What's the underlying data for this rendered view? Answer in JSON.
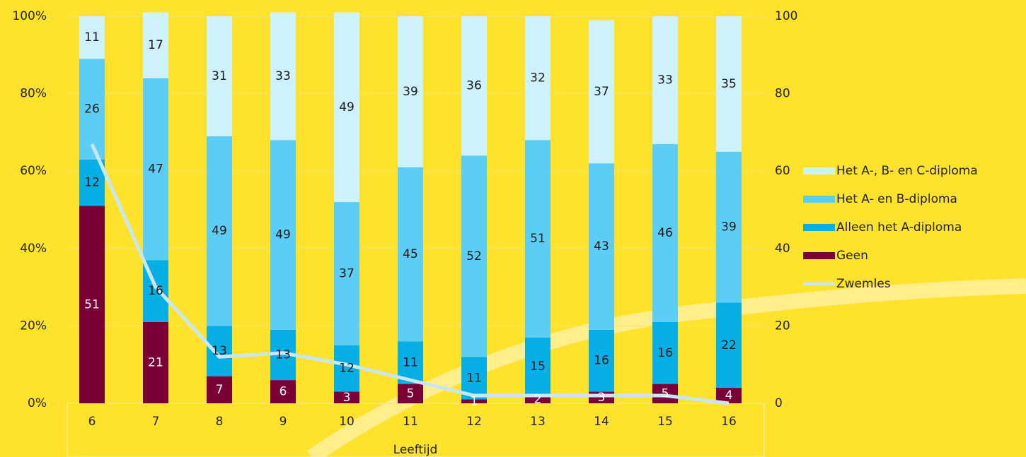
{
  "chart_data": {
    "type": "bar",
    "stacked": true,
    "x_label": "Leeftijd",
    "categories": [
      "6",
      "7",
      "8",
      "9",
      "10",
      "11",
      "12",
      "13",
      "14",
      "15",
      "16"
    ],
    "series": [
      {
        "name": "Geen",
        "color": "#7a0036",
        "label_color": "#ffffff",
        "values": [
          51,
          21,
          7,
          6,
          3,
          5,
          1,
          2,
          3,
          5,
          4
        ]
      },
      {
        "name": "Alleen het A-diploma",
        "color": "#06aee6",
        "label_color": "#1a1a1a",
        "values": [
          12,
          16,
          13,
          13,
          12,
          11,
          11,
          15,
          16,
          16,
          22
        ]
      },
      {
        "name": "Het A- en B-diploma",
        "color": "#5bcdf6",
        "label_color": "#1a1a1a",
        "values": [
          26,
          47,
          49,
          49,
          37,
          45,
          52,
          51,
          43,
          46,
          39
        ]
      },
      {
        "name": "Het A-, B- en C-diploma",
        "color": "#cdf1fd",
        "label_color": "#1a1a1a",
        "values": [
          11,
          17,
          31,
          33,
          49,
          39,
          36,
          32,
          37,
          33,
          35
        ]
      },
      {
        "name": "Zwemles",
        "type": "line",
        "axis": "y2",
        "color": "#c9e6f4",
        "values": [
          67,
          30,
          12,
          13,
          10,
          6,
          2,
          2,
          2,
          2,
          0
        ]
      }
    ],
    "ylim": [
      0,
      100
    ],
    "yticks": [
      {
        "value": 0,
        "label": "0%"
      },
      {
        "value": 20,
        "label": "20%"
      },
      {
        "value": 40,
        "label": "40%"
      },
      {
        "value": 60,
        "label": "60%"
      },
      {
        "value": 80,
        "label": "80%"
      },
      {
        "value": 100,
        "label": "100%"
      }
    ],
    "y2lim": [
      0,
      100
    ],
    "y2ticks": [
      0,
      20,
      40,
      60,
      80,
      100
    ],
    "grid": true,
    "legend": "right"
  }
}
